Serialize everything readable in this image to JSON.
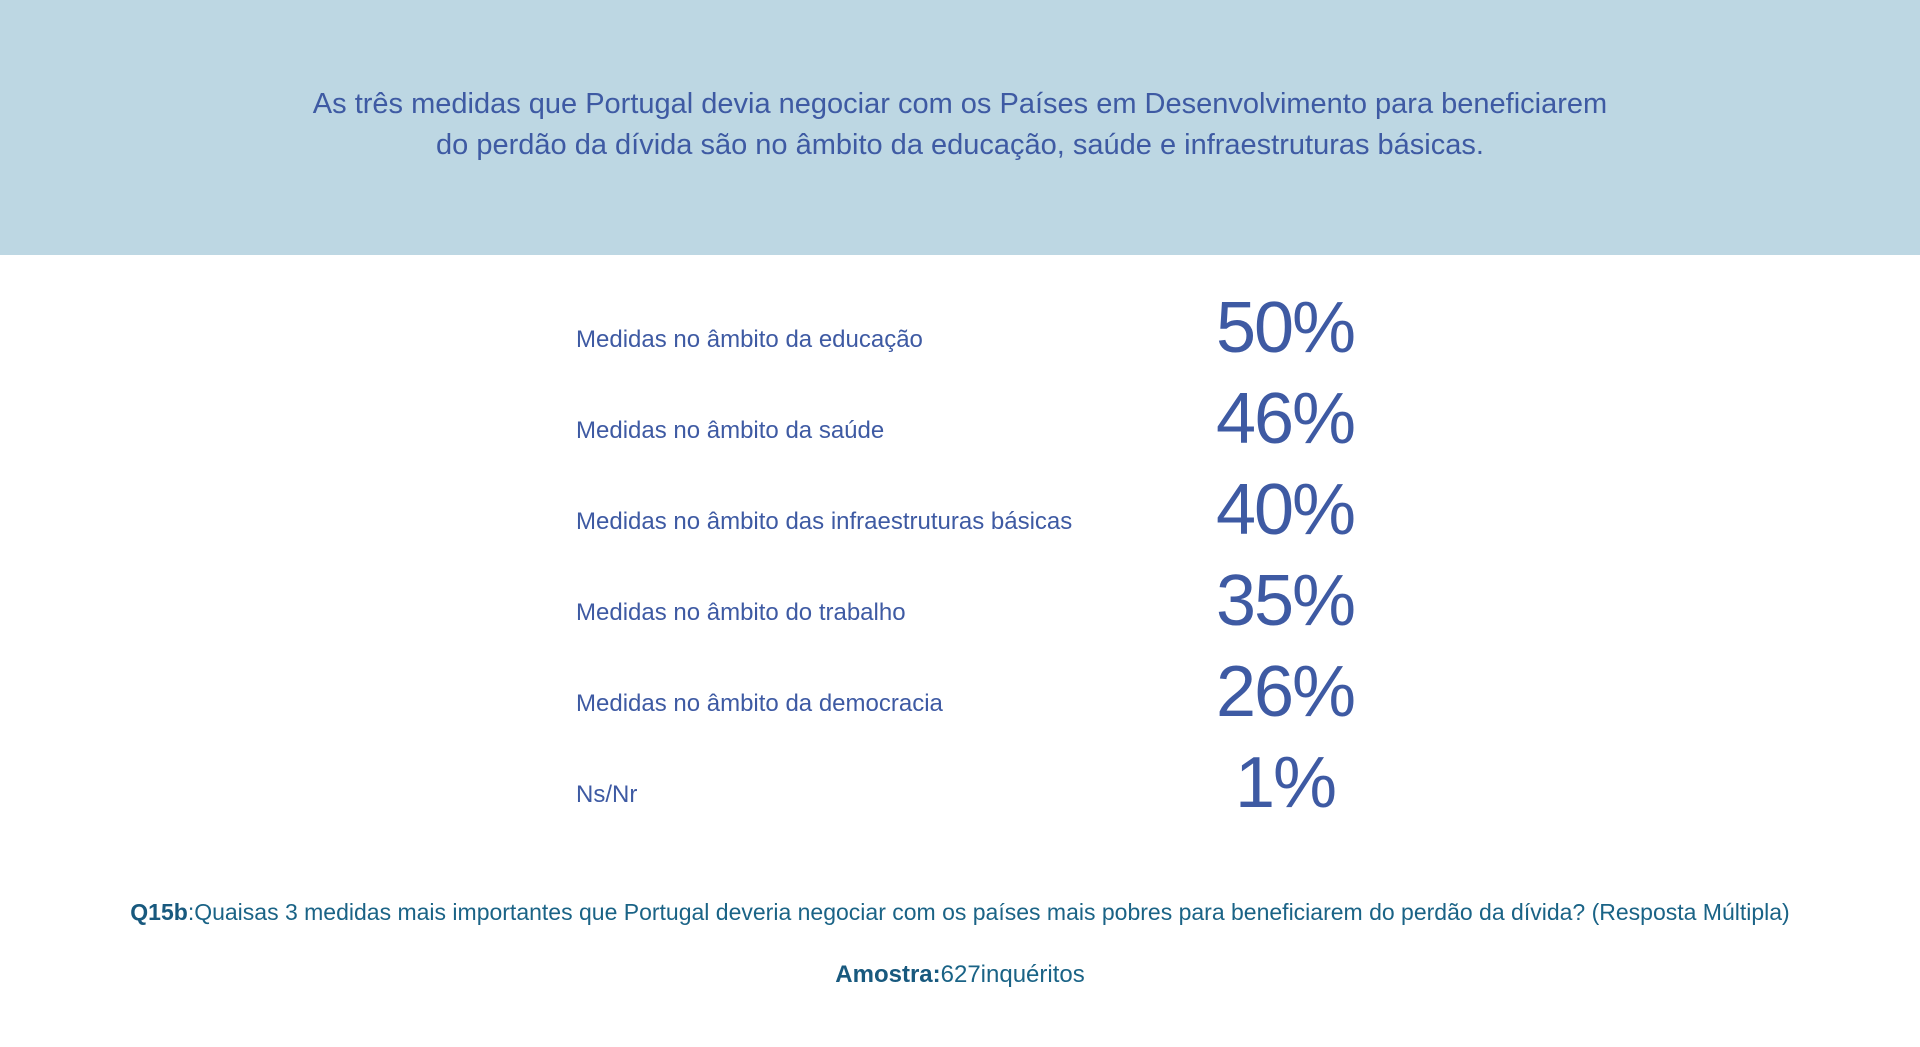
{
  "header": {
    "title_line1": "As três medidas que Portugal devia negociar com os Países em Desenvolvimento para beneficiarem",
    "title_line2": "do perdão da dívida são no âmbito da educação, saúde e infraestruturas básicas."
  },
  "chart_data": {
    "type": "table",
    "title": "As três medidas que Portugal devia negociar com os Países em Desenvolvimento para beneficiarem do perdão da dívida são no âmbito da educação, saúde e infraestruturas básicas.",
    "categories": [
      "Medidas no âmbito da educação",
      "Medidas no âmbito da saúde",
      "Medidas no âmbito das infraestruturas básicas",
      "Medidas no âmbito do trabalho",
      "Medidas no âmbito da democracia",
      "Ns/Nr"
    ],
    "values": [
      50,
      46,
      40,
      35,
      26,
      1
    ],
    "value_labels": [
      "50%",
      "46%",
      "40%",
      "35%",
      "26%",
      "1%"
    ],
    "unit": "%"
  },
  "footer": {
    "question_code": "Q15b",
    "question_text": ":Quaisas 3 medidas mais importantes que Portugal deveria negociar com os países mais pobres para beneficiarem do perdão da dívida? (Resposta Múltipla)",
    "sample_label": "Amostra:",
    "sample_value": "627inquéritos"
  },
  "colors": {
    "header_bg": "#bdd7e3",
    "primary_text": "#3e5aa3",
    "footer_text": "#1a6386"
  }
}
